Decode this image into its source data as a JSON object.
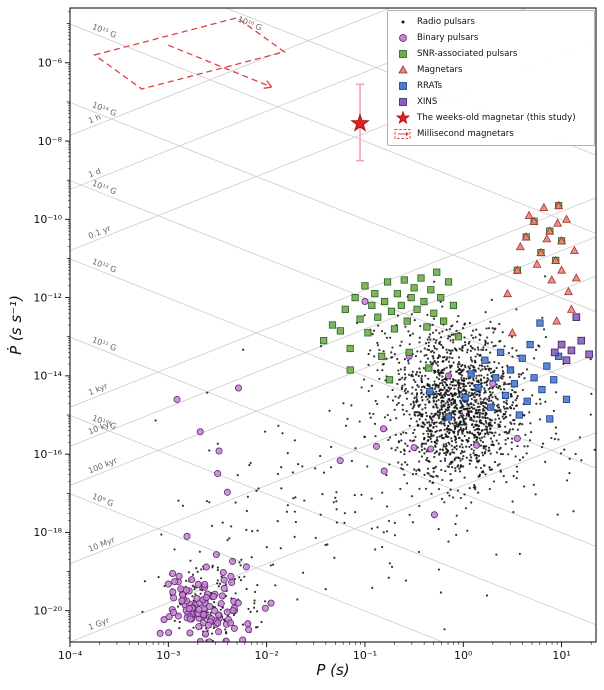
{
  "figure": {
    "xlabel": "P (s)",
    "ylabel": "Ṗ (s s⁻¹)"
  },
  "legend": {
    "items": [
      {
        "marker": "dot",
        "fill": "#111111",
        "edge": "#111111",
        "label": "Radio pulsars"
      },
      {
        "marker": "circle",
        "fill": "#c97fd6",
        "edge": "#5a2a6a",
        "label": "Binary pulsars"
      },
      {
        "marker": "square",
        "fill": "#6fae4f",
        "edge": "#2e5c22",
        "label": "SNR-associated pulsars"
      },
      {
        "marker": "triangle",
        "fill": "#ef8370",
        "edge": "#993333",
        "label": "Magnetars"
      },
      {
        "marker": "square",
        "fill": "#4a7bd0",
        "edge": "#1a3a7a",
        "label": "RRATs"
      },
      {
        "marker": "square",
        "fill": "#8b5fbf",
        "edge": "#3a2060",
        "label": "XINS"
      },
      {
        "marker": "star",
        "fill": "#dd2020",
        "edge": "#a01010",
        "label": "The weeks-old magnetar (this study)"
      },
      {
        "marker": "dashed-region",
        "fill": "none",
        "edge": "#e04040",
        "label": "Millisecond magnetars"
      }
    ]
  },
  "chart_data": {
    "type": "scatter",
    "title": "",
    "xlabel": "P (s)",
    "ylabel": "Ṗ (s s⁻¹)",
    "x_axis": {
      "scale": "log",
      "tick_exponents": [
        -4,
        -3,
        -2,
        -1,
        0,
        1
      ],
      "range_exponents": [
        -4,
        1.35
      ]
    },
    "y_axis": {
      "scale": "log",
      "tick_exponents": [
        -6,
        -8,
        -10,
        -12,
        -14,
        -16,
        -18,
        -20
      ],
      "range_exponents": [
        -4.6,
        -20.8
      ]
    },
    "grid": {
      "magnetic_field_lines_log_gauss": [
        9,
        10,
        11,
        12,
        13,
        14,
        15,
        16
      ],
      "age_lines": [
        {
          "label": "1 h",
          "seconds": 3600
        },
        {
          "label": "1 d",
          "seconds": 86400
        },
        {
          "label": "0.1 yr",
          "seconds": 3156000.0
        },
        {
          "label": "1 kyr",
          "seconds": 31560000000.0
        },
        {
          "label": "10 kyr",
          "seconds": 315600000000.0
        },
        {
          "label": "100 kyr",
          "seconds": 3156000000000.0
        },
        {
          "label": "10 Myr",
          "seconds": 315600000000000.0
        },
        {
          "label": "1 Gyr",
          "seconds": 3.156e+16
        }
      ]
    },
    "series": [
      {
        "name": "Radio pulsars",
        "marker": "dot",
        "color": "#111111",
        "size": 1.1,
        "seed": 42,
        "clusters": [
          {
            "count": 1400,
            "center": [
              -0.05,
              -14.8
            ],
            "sigma": [
              0.3,
              0.95
            ]
          },
          {
            "count": 150,
            "center": [
              -2.55,
              -19.8
            ],
            "sigma": [
              0.25,
              0.65
            ]
          },
          {
            "count": 120,
            "center": [
              -0.55,
              -13.4
            ],
            "sigma": [
              0.35,
              0.65
            ]
          },
          {
            "count": 140,
            "center": [
              -1.15,
              -16.9
            ],
            "sigma": [
              0.8,
              1.2
            ]
          },
          {
            "count": 100,
            "center": [
              0.45,
              -15.2
            ],
            "sigma": [
              0.5,
              1.3
            ]
          }
        ]
      },
      {
        "name": "Binary pulsars",
        "marker": "circle",
        "fill": "#c97fd6",
        "edge": "#5a2a6a",
        "size": 3.1,
        "seed": 7,
        "clusters": [
          {
            "count": 115,
            "center": [
              -2.62,
              -19.9
            ],
            "sigma": [
              0.22,
              0.55
            ]
          },
          {
            "count": 14,
            "center": [
              -0.7,
              -16.0
            ],
            "sigma": [
              0.85,
              1.2
            ]
          }
        ],
        "points": [
          [
            -1.0,
            -12.1
          ],
          [
            -0.55,
            -13.5
          ],
          [
            0.3,
            -14.2
          ],
          [
            0.55,
            -15.6
          ],
          [
            -0.15,
            -14.0
          ]
        ]
      },
      {
        "name": "SNR-associated pulsars",
        "marker": "square",
        "fill": "#6fae4f",
        "edge": "#2e5c22",
        "size": 3.2,
        "points": [
          [
            -1.42,
            -13.1
          ],
          [
            -1.33,
            -12.7
          ],
          [
            -1.25,
            -12.85
          ],
          [
            -1.2,
            -12.3
          ],
          [
            -1.15,
            -13.3
          ],
          [
            -1.1,
            -12.0
          ],
          [
            -1.05,
            -12.55
          ],
          [
            -1.0,
            -11.7
          ],
          [
            -0.97,
            -12.9
          ],
          [
            -0.93,
            -12.2
          ],
          [
            -0.9,
            -11.9
          ],
          [
            -0.87,
            -12.5
          ],
          [
            -0.83,
            -13.5
          ],
          [
            -0.8,
            -12.1
          ],
          [
            -0.77,
            -11.6
          ],
          [
            -0.73,
            -12.35
          ],
          [
            -0.7,
            -12.8
          ],
          [
            -0.67,
            -11.9
          ],
          [
            -0.63,
            -12.2
          ],
          [
            -0.6,
            -11.55
          ],
          [
            -0.57,
            -12.6
          ],
          [
            -0.53,
            -12.0
          ],
          [
            -0.5,
            -11.75
          ],
          [
            -0.47,
            -12.3
          ],
          [
            -0.43,
            -11.5
          ],
          [
            -0.4,
            -12.1
          ],
          [
            -0.37,
            -12.75
          ],
          [
            -0.33,
            -11.8
          ],
          [
            -0.3,
            -12.4
          ],
          [
            -0.27,
            -11.35
          ],
          [
            -0.23,
            -12.0
          ],
          [
            -0.2,
            -12.6
          ],
          [
            -0.15,
            -11.6
          ],
          [
            -0.1,
            -12.2
          ],
          [
            -0.05,
            -13.0
          ],
          [
            -0.55,
            -13.4
          ],
          [
            -0.35,
            -13.8
          ],
          [
            -0.75,
            -14.1
          ],
          [
            -1.15,
            -13.85
          ],
          [
            0.55,
            -11.3
          ],
          [
            0.64,
            -10.45
          ],
          [
            0.72,
            -10.05
          ],
          [
            0.79,
            -10.85
          ],
          [
            0.88,
            -10.3
          ],
          [
            0.94,
            -11.05
          ],
          [
            1.0,
            -10.55
          ],
          [
            0.97,
            -9.65
          ]
        ]
      },
      {
        "name": "Magnetars",
        "marker": "triangle",
        "fill": "#ef8370",
        "edge": "#993333",
        "size": 4.0,
        "points": [
          [
            0.55,
            -11.3
          ],
          [
            0.58,
            -10.7
          ],
          [
            0.64,
            -10.45
          ],
          [
            0.67,
            -9.9
          ],
          [
            0.72,
            -10.05
          ],
          [
            0.75,
            -11.15
          ],
          [
            0.79,
            -10.85
          ],
          [
            0.82,
            -9.7
          ],
          [
            0.85,
            -10.5
          ],
          [
            0.88,
            -10.3
          ],
          [
            0.9,
            -11.55
          ],
          [
            0.94,
            -11.05
          ],
          [
            0.96,
            -10.1
          ],
          [
            0.97,
            -9.65
          ],
          [
            1.0,
            -11.3
          ],
          [
            1.0,
            -10.55
          ],
          [
            1.05,
            -10.0
          ],
          [
            1.07,
            -11.85
          ],
          [
            1.1,
            -12.3
          ],
          [
            0.95,
            -12.6
          ],
          [
            1.13,
            -10.8
          ],
          [
            1.15,
            -11.5
          ],
          [
            0.5,
            -12.9
          ],
          [
            0.45,
            -11.9
          ]
        ]
      },
      {
        "name": "RRATs",
        "marker": "square",
        "fill": "#4a7bd0",
        "edge": "#1a3a7a",
        "size": 3.2,
        "points": [
          [
            -0.34,
            -14.4
          ],
          [
            -0.15,
            -15.05
          ],
          [
            0.02,
            -14.55
          ],
          [
            0.08,
            -13.95
          ],
          [
            0.15,
            -14.3
          ],
          [
            0.22,
            -13.6
          ],
          [
            0.28,
            -14.8
          ],
          [
            0.33,
            -14.05
          ],
          [
            0.38,
            -13.4
          ],
          [
            0.43,
            -14.5
          ],
          [
            0.48,
            -13.85
          ],
          [
            0.52,
            -14.2
          ],
          [
            0.57,
            -15.0
          ],
          [
            0.6,
            -13.55
          ],
          [
            0.65,
            -14.65
          ],
          [
            0.68,
            -13.2
          ],
          [
            0.72,
            -14.05
          ],
          [
            0.78,
            -12.65
          ],
          [
            0.8,
            -14.35
          ],
          [
            0.85,
            -13.75
          ],
          [
            0.88,
            -15.1
          ],
          [
            0.92,
            -14.1
          ],
          [
            0.97,
            -13.5
          ],
          [
            1.05,
            -14.6
          ]
        ]
      },
      {
        "name": "XINS",
        "marker": "square",
        "fill": "#8b5fbf",
        "edge": "#3a2060",
        "size": 3.4,
        "points": [
          [
            0.93,
            -13.4
          ],
          [
            1.0,
            -13.2
          ],
          [
            1.05,
            -13.6
          ],
          [
            1.1,
            -13.35
          ],
          [
            1.15,
            -12.5
          ],
          [
            1.2,
            -13.1
          ],
          [
            1.28,
            -13.45
          ]
        ]
      },
      {
        "name": "The weeks-old magnetar (this study)",
        "marker": "star",
        "fill": "#dd2020",
        "edge": "#a01010",
        "P_seconds": 0.089,
        "Pdot_s_per_s": 2.8e-08,
        "point": [
          -1.05,
          -7.55
        ],
        "errorbar_logPdot": [
          -6.55,
          -8.5
        ],
        "errorbar_color": "#f2a0c8"
      }
    ],
    "millisecond_magnetars_region": {
      "color": "#e04040",
      "polygon": [
        [
          -3.75,
          -5.8
        ],
        [
          -2.3,
          -4.85
        ],
        [
          -1.82,
          -5.72
        ],
        [
          -3.27,
          -6.67
        ]
      ],
      "arrow": {
        "from": [
          -3.0,
          -5.55
        ],
        "to": [
          -1.95,
          -6.62
        ]
      }
    }
  }
}
